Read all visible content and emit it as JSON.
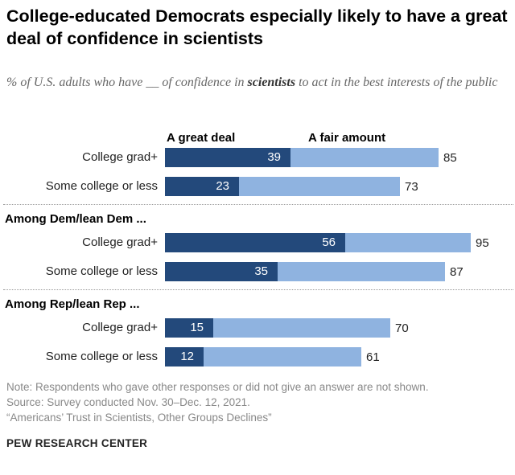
{
  "chart_data": {
    "type": "bar",
    "title": "College-educated Democrats especially likely to have a great deal of confidence in scientists",
    "subtitle_pre": "% of U.S. adults who have __ of confidence in ",
    "subtitle_bold": "scientists",
    "subtitle_post": " to act in the best interests of the public",
    "legend": [
      "A great deal",
      "A fair amount"
    ],
    "colors": {
      "great_deal": "#23497b",
      "fair_amount": "#8fb3e0"
    },
    "groups": [
      {
        "label": "",
        "rows": [
          {
            "category": "College grad+",
            "great_deal": 39,
            "total": 85
          },
          {
            "category": "Some college or less",
            "great_deal": 23,
            "total": 73
          }
        ]
      },
      {
        "label": "Among Dem/lean Dem ...",
        "rows": [
          {
            "category": "College grad+",
            "great_deal": 56,
            "total": 95
          },
          {
            "category": "Some college or less",
            "great_deal": 35,
            "total": 87
          }
        ]
      },
      {
        "label": "Among Rep/lean Rep ...",
        "rows": [
          {
            "category": "College grad+",
            "great_deal": 15,
            "total": 70
          },
          {
            "category": "Some college or less",
            "great_deal": 12,
            "total": 61
          }
        ]
      }
    ]
  },
  "notes": [
    "Note: Respondents who gave other responses or did not give an answer are not shown.",
    "Source: Survey conducted Nov. 30–Dec. 12, 2021.",
    "“Americans’ Trust in Scientists, Other Groups Declines”"
  ],
  "brand": "PEW RESEARCH CENTER"
}
